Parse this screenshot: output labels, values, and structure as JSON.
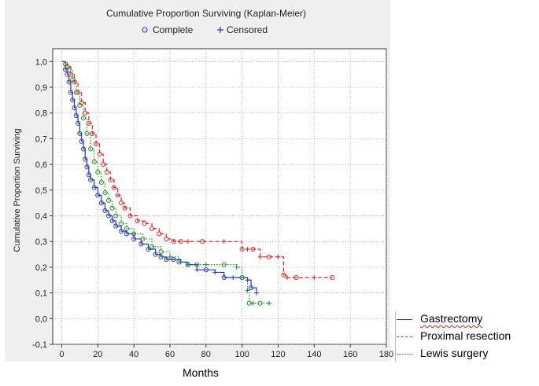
{
  "chart_data": {
    "type": "line",
    "title": "Cumulative Proportion Surviving (Kaplan-Meier)",
    "ylabel": "Cumulative Proportion Surviving",
    "xlabel": "Months",
    "xlim": [
      -5,
      180
    ],
    "ylim": [
      -0.1,
      1.05
    ],
    "x_ticks": [
      0,
      20,
      40,
      60,
      80,
      100,
      120,
      140,
      160,
      180
    ],
    "y_ticks": [
      -0.1,
      0.0,
      0.1,
      0.2,
      0.3,
      0.4,
      0.5,
      0.6,
      0.7,
      0.8,
      0.9,
      1.0
    ],
    "x_tick_labels": [
      "0",
      "20",
      "40",
      "60",
      "80",
      "100",
      "120",
      "140",
      "160",
      "180"
    ],
    "y_tick_labels": [
      "-0,1",
      "0,0",
      "0,1",
      "0,2",
      "0,3",
      "0,4",
      "0,5",
      "0,6",
      "0,7",
      "0,8",
      "0,9",
      "1,0"
    ],
    "grid": true,
    "marker_legend": {
      "complete": "Complete",
      "censored": "Censored"
    },
    "series": [
      {
        "name": "Gastrectomy",
        "color": "#2233cc",
        "style": "solid",
        "x": [
          0,
          2,
          3,
          4,
          5,
          6,
          7,
          8,
          9,
          10,
          11,
          12,
          13,
          14,
          15,
          16,
          18,
          20,
          22,
          24,
          26,
          28,
          30,
          33,
          36,
          40,
          44,
          48,
          52,
          55,
          58,
          62,
          66,
          70,
          75,
          80,
          85,
          90,
          95,
          100,
          103,
          105,
          108
        ],
        "y": [
          1.0,
          0.97,
          0.95,
          0.92,
          0.88,
          0.85,
          0.82,
          0.79,
          0.76,
          0.72,
          0.69,
          0.66,
          0.62,
          0.59,
          0.56,
          0.54,
          0.51,
          0.48,
          0.45,
          0.42,
          0.4,
          0.38,
          0.36,
          0.34,
          0.33,
          0.31,
          0.29,
          0.27,
          0.25,
          0.24,
          0.23,
          0.23,
          0.22,
          0.21,
          0.19,
          0.19,
          0.18,
          0.16,
          0.16,
          0.16,
          0.15,
          0.12,
          0.1
        ]
      },
      {
        "name": "Proximal resection",
        "color": "#e02020",
        "style": "dashed",
        "x": [
          0,
          3,
          5,
          7,
          9,
          11,
          13,
          15,
          17,
          19,
          21,
          23,
          25,
          27,
          29,
          31,
          33,
          35,
          38,
          42,
          46,
          50,
          54,
          58,
          62,
          66,
          70,
          78,
          90,
          100,
          103,
          106,
          110,
          115,
          120,
          123,
          125,
          130,
          140,
          150
        ],
        "y": [
          1.0,
          0.98,
          0.95,
          0.92,
          0.88,
          0.84,
          0.8,
          0.76,
          0.72,
          0.68,
          0.64,
          0.6,
          0.57,
          0.54,
          0.51,
          0.48,
          0.45,
          0.43,
          0.4,
          0.38,
          0.37,
          0.35,
          0.33,
          0.31,
          0.3,
          0.3,
          0.3,
          0.3,
          0.3,
          0.27,
          0.27,
          0.27,
          0.24,
          0.24,
          0.24,
          0.17,
          0.16,
          0.16,
          0.16,
          0.16
        ]
      },
      {
        "name": "Lewis surgery",
        "color": "#1a8a1a",
        "style": "dotted",
        "x": [
          0,
          2,
          4,
          6,
          8,
          10,
          12,
          14,
          16,
          18,
          20,
          22,
          24,
          26,
          28,
          30,
          33,
          36,
          40,
          45,
          50,
          55,
          60,
          65,
          70,
          75,
          80,
          90,
          97,
          100,
          103,
          104,
          106,
          110,
          115
        ],
        "y": [
          1.0,
          0.99,
          0.97,
          0.93,
          0.88,
          0.83,
          0.78,
          0.72,
          0.66,
          0.61,
          0.57,
          0.53,
          0.49,
          0.46,
          0.43,
          0.4,
          0.37,
          0.35,
          0.33,
          0.31,
          0.28,
          0.26,
          0.24,
          0.22,
          0.21,
          0.21,
          0.21,
          0.21,
          0.2,
          0.16,
          0.11,
          0.06,
          0.06,
          0.06,
          0.06
        ]
      }
    ]
  },
  "outer_legend": {
    "items": [
      {
        "label": "Gastrectomy"
      },
      {
        "label": "Proximal resection"
      },
      {
        "label": "Lewis surgery"
      }
    ]
  }
}
